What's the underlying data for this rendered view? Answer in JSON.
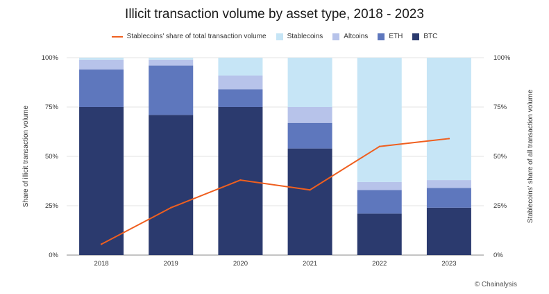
{
  "chart_data": {
    "type": "bar",
    "title": "Illicit transaction volume by asset type, 2018 - 2023",
    "ylabel": "Share of illicit transaction volume",
    "y2label": "Stablecoins' share of all transaction volume",
    "ylim": [
      0,
      100
    ],
    "y2lim": [
      0,
      100
    ],
    "yticks": [
      "0%",
      "25%",
      "50%",
      "75%",
      "100%"
    ],
    "y2ticks": [
      "0%",
      "25%",
      "50%",
      "75%",
      "100%"
    ],
    "categories": [
      "2018",
      "2019",
      "2020",
      "2021",
      "2022",
      "2023"
    ],
    "stacked": true,
    "series": [
      {
        "name": "BTC",
        "color": "#2b3a6e",
        "values": [
          75,
          71,
          75,
          54,
          21,
          24
        ]
      },
      {
        "name": "ETH",
        "color": "#5e77bd",
        "values": [
          19,
          25,
          9,
          13,
          12,
          10
        ]
      },
      {
        "name": "Altcoins",
        "color": "#b7c3ea",
        "values": [
          5,
          3,
          7,
          8,
          4,
          4
        ]
      },
      {
        "name": "Stablecoins",
        "color": "#c6e5f6",
        "values": [
          1,
          1,
          9,
          25,
          63,
          62
        ]
      }
    ],
    "line_series": {
      "name": "Stablecoins' share of total transaction volume",
      "color": "#ef5f1f",
      "values": [
        5.5,
        24,
        38,
        33,
        55,
        59
      ]
    },
    "legend_position": "top",
    "grid": true
  },
  "credit": "© Chainalysis"
}
